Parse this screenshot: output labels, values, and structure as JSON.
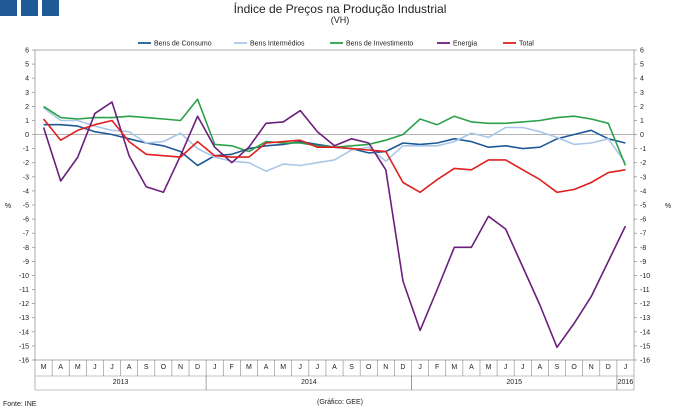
{
  "header": {
    "title": "Índice de Preços na Produção Industrial",
    "subtitle": "(VH)"
  },
  "footer": {
    "source": "Fonte: INE",
    "credit": "(Gráfico: GEE)"
  },
  "chart_data": {
    "type": "line",
    "title": "Índice de Preços na Produção Industrial",
    "subtitle": "(VH)",
    "ylabel_left": "%",
    "ylabel_right": "%",
    "ylim": [
      -16,
      6
    ],
    "yticks": [
      6,
      5,
      4,
      3,
      2,
      1,
      0,
      -1,
      -2,
      -3,
      -4,
      -5,
      -6,
      -7,
      -8,
      -9,
      -10,
      -11,
      -12,
      -13,
      -14,
      -15,
      -16
    ],
    "categories": [
      "M",
      "A",
      "M",
      "J",
      "J",
      "A",
      "S",
      "O",
      "N",
      "D",
      "J",
      "F",
      "M",
      "A",
      "M",
      "J",
      "J",
      "A",
      "S",
      "O",
      "N",
      "D",
      "J",
      "F",
      "M",
      "A",
      "M",
      "J",
      "J",
      "A",
      "S",
      "O",
      "N",
      "D",
      "J"
    ],
    "years": [
      {
        "label": "2013",
        "from": 0,
        "to": 9
      },
      {
        "label": "2014",
        "from": 10,
        "to": 21
      },
      {
        "label": "2015",
        "from": 22,
        "to": 33
      },
      {
        "label": "2016",
        "from": 34,
        "to": 34
      }
    ],
    "series": [
      {
        "name": "Bens de Consumo",
        "color": "#1f5a96",
        "values": [
          0.7,
          0.7,
          0.6,
          0.2,
          0.0,
          -0.3,
          -0.6,
          -0.8,
          -1.2,
          -2.2,
          -1.5,
          -1.4,
          -1.0,
          -0.8,
          -0.7,
          -0.5,
          -0.7,
          -0.9,
          -1.0,
          -1.3,
          -1.2,
          -0.6,
          -0.7,
          -0.6,
          -0.3,
          -0.5,
          -0.9,
          -0.8,
          -1.0,
          -0.9,
          -0.3,
          0.0,
          0.3,
          -0.3,
          -0.6
        ]
      },
      {
        "name": "Bens Intermédios",
        "color": "#a9c8e8",
        "values": [
          1.9,
          1.0,
          1.0,
          0.6,
          0.3,
          0.2,
          -0.6,
          -0.5,
          0.1,
          -1.0,
          -1.6,
          -1.9,
          -2.0,
          -2.6,
          -2.1,
          -2.2,
          -2.0,
          -1.8,
          -1.1,
          -0.9,
          -1.9,
          -0.8,
          -0.8,
          -0.8,
          -0.5,
          0.1,
          -0.2,
          0.5,
          0.5,
          0.2,
          -0.2,
          -0.7,
          -0.6,
          -0.3,
          -2.0
        ]
      },
      {
        "name": "Bens de Investimento",
        "color": "#2ba14a",
        "values": [
          2.0,
          1.2,
          1.1,
          1.2,
          1.2,
          1.3,
          1.2,
          1.1,
          1.0,
          2.5,
          -0.7,
          -0.8,
          -1.2,
          -0.5,
          -0.6,
          -0.6,
          -0.8,
          -0.9,
          -0.8,
          -0.7,
          -0.4,
          0.0,
          1.1,
          0.7,
          1.3,
          0.9,
          0.8,
          0.8,
          0.9,
          1.0,
          1.2,
          1.3,
          1.1,
          0.8,
          -2.2
        ]
      },
      {
        "name": "Energia",
        "color": "#6b1f7c",
        "values": [
          0.5,
          -3.3,
          -1.6,
          1.5,
          2.3,
          -1.5,
          -3.7,
          -4.1,
          -1.5,
          1.3,
          -0.9,
          -2.0,
          -0.9,
          0.8,
          0.9,
          1.7,
          0.2,
          -0.8,
          -0.3,
          -0.6,
          -2.5,
          -10.4,
          -13.9,
          -11.0,
          -8.0,
          -8.0,
          -5.8,
          -6.7,
          -9.4,
          -12.1,
          -15.1,
          -13.4,
          -11.5,
          -9.0,
          -6.5
        ]
      },
      {
        "name": "Total",
        "color": "#e02020",
        "values": [
          1.1,
          -0.4,
          0.3,
          0.7,
          1.0,
          -0.5,
          -1.4,
          -1.5,
          -1.6,
          -0.5,
          -1.5,
          -1.6,
          -1.6,
          -0.6,
          -0.5,
          -0.4,
          -0.9,
          -0.9,
          -1.0,
          -1.1,
          -1.2,
          -3.4,
          -4.1,
          -3.2,
          -2.4,
          -2.5,
          -1.8,
          -1.8,
          -2.5,
          -3.2,
          -4.1,
          -3.9,
          -3.4,
          -2.7,
          -2.5
        ]
      }
    ]
  }
}
